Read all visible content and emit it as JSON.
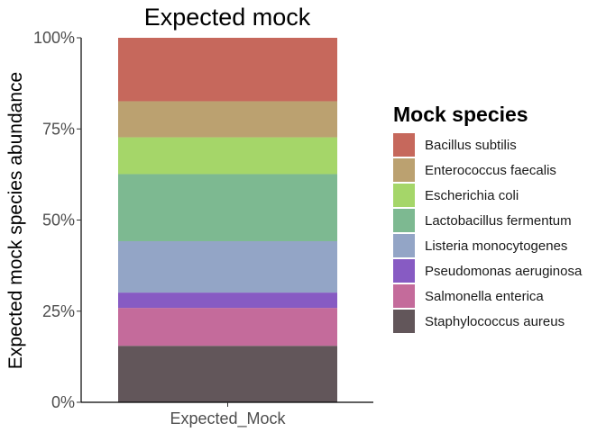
{
  "chart_data": {
    "type": "bar",
    "stacked": true,
    "percent": true,
    "title": "Expected mock",
    "xlabel": "",
    "ylabel": "Expected mock species abundance",
    "categories": [
      "Expected_Mock"
    ],
    "ylim": [
      0,
      100
    ],
    "yticks": [
      "0%",
      "25%",
      "50%",
      "75%",
      "100%"
    ],
    "grid": false,
    "legend_position": "right",
    "legend_title": "Mock species",
    "series": [
      {
        "name": "Bacillus subtilis",
        "values": [
          17.4
        ],
        "color": "#c6685c"
      },
      {
        "name": "Enterococcus faecalis",
        "values": [
          9.9
        ],
        "color": "#bba170"
      },
      {
        "name": "Escherichia coli",
        "values": [
          10.1
        ],
        "color": "#a5d669"
      },
      {
        "name": "Lactobacillus fermentum",
        "values": [
          18.4
        ],
        "color": "#7db991"
      },
      {
        "name": "Listeria monocytogenes",
        "values": [
          14.1
        ],
        "color": "#93a5c6"
      },
      {
        "name": "Pseudomonas aeruginosa",
        "values": [
          4.2
        ],
        "color": "#875bc3"
      },
      {
        "name": "Salmonella enterica",
        "values": [
          10.4
        ],
        "color": "#c46b9b"
      },
      {
        "name": "Staphylococcus aureus",
        "values": [
          15.5
        ],
        "color": "#62565a"
      }
    ]
  }
}
